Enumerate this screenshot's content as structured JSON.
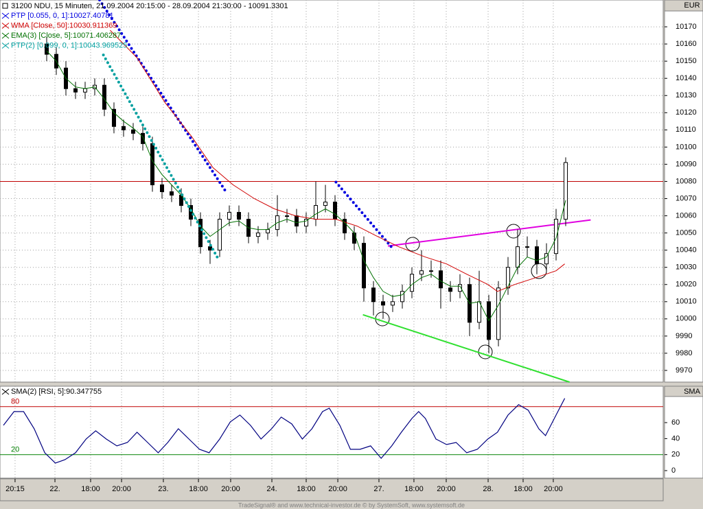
{
  "chart_data": {
    "type": "candlestick",
    "title": "31200  NDU, 15 Minuten, 21.09.2004 20:15:00 - 28.09.2004 21:30:00 - 10091.3301",
    "y_unit": "EUR",
    "xlim": [
      -4.857,
      64.143
    ],
    "xticks": [
      {
        "value": -3.29,
        "label": "20:15"
      },
      {
        "value": 0.86,
        "label": "22."
      },
      {
        "value": 4.57,
        "label": "18:00"
      },
      {
        "value": 7.79,
        "label": "20:00"
      },
      {
        "value": 12.14,
        "label": "23."
      },
      {
        "value": 15.79,
        "label": "18:00"
      },
      {
        "value": 19.14,
        "label": "20:00"
      },
      {
        "value": 23.43,
        "label": "24."
      },
      {
        "value": 27,
        "label": "18:00"
      },
      {
        "value": 30.29,
        "label": "20:00"
      },
      {
        "value": 34.57,
        "label": "27."
      },
      {
        "value": 38.21,
        "label": "18:00"
      },
      {
        "value": 41.57,
        "label": "20:00"
      },
      {
        "value": 45.93,
        "label": "28."
      },
      {
        "value": 49.57,
        "label": "18:00"
      },
      {
        "value": 52.71,
        "label": "20:00"
      }
    ],
    "ylim": [
      9963.2,
      10185.6
    ],
    "yticks": [
      9970,
      9980,
      9990,
      10000,
      10010,
      10020,
      10030,
      10040,
      10050,
      10060,
      10070,
      10080,
      10090,
      10100,
      10110,
      10120,
      10130,
      10140,
      10150,
      10160,
      10170
    ],
    "grid": true,
    "up_color": "#ffffff",
    "down_color": "#000000",
    "open": [
      10160,
      10154,
      10146,
      10134,
      10132,
      10134,
      10136,
      10122,
      10112,
      10110,
      10108,
      10102,
      10078,
      10074,
      10072,
      10066,
      10058,
      10042,
      10040,
      10058,
      10062,
      10058,
      10048,
      10050,
      10052,
      10060,
      10060,
      10054,
      10058,
      10066,
      10068,
      10058,
      10050,
      10044,
      10018,
      10010,
      10008,
      10010,
      10016,
      10026,
      10028,
      10028,
      10018,
      10016,
      10020,
      9998,
      10010,
      9988,
      10018,
      10030,
      10042,
      10042,
      10032,
      10038,
      10058
    ],
    "high": [
      10164,
      10158,
      10150,
      10138,
      10138,
      10140,
      10140,
      10126,
      10116,
      10114,
      10112,
      10106,
      10082,
      10078,
      10076,
      10070,
      10062,
      10046,
      10062,
      10066,
      10066,
      10062,
      10054,
      10056,
      10072,
      10064,
      10064,
      10062,
      10080,
      10078,
      10072,
      10062,
      10054,
      10048,
      10022,
      10014,
      10014,
      10020,
      10030,
      10040,
      10034,
      10034,
      10022,
      10026,
      10024,
      10028,
      10014,
      10022,
      10036,
      10052,
      10048,
      10046,
      10044,
      10064,
      10094
    ],
    "low": [
      10150,
      10142,
      10130,
      10128,
      10128,
      10130,
      10118,
      10108,
      10106,
      10104,
      10098,
      10074,
      10070,
      10068,
      10062,
      10054,
      10038,
      10032,
      10036,
      10054,
      10054,
      10044,
      10044,
      10046,
      10048,
      10056,
      10050,
      10050,
      10054,
      10062,
      10054,
      10046,
      10040,
      10010,
      10002,
      10000,
      10004,
      10006,
      10012,
      10022,
      10024,
      10006,
      10010,
      10012,
      9990,
      9994,
      9980,
      9984,
      10014,
      10026,
      10036,
      10026,
      10028,
      10034,
      10054
    ],
    "close": [
      10154,
      10146,
      10134,
      10132,
      10134,
      10136,
      10122,
      10112,
      10110,
      10108,
      10102,
      10078,
      10074,
      10072,
      10066,
      10058,
      10042,
      10040,
      10058,
      10062,
      10058,
      10048,
      10050,
      10052,
      10060,
      10060,
      10054,
      10058,
      10066,
      10068,
      10058,
      10050,
      10044,
      10018,
      10010,
      10008,
      10010,
      10016,
      10026,
      10028,
      10028,
      10018,
      10016,
      10020,
      9998,
      10010,
      9988,
      10018,
      10030,
      10042,
      10042,
      10032,
      10038,
      10058,
      10091
    ],
    "series": [
      {
        "name": "PTP [0.055, 0, 1]:10027.40781",
        "color": "#0000e0",
        "style": "dots",
        "x": [
          5.5,
          18.7,
          21.9,
          30.1,
          35.9,
          40.9,
          45.1,
          47.1,
          53.9
        ],
        "values": [
          10185.6,
          10073.6,
          null,
          10079.6,
          10041.6,
          null,
          10021.6,
          null,
          10029.6
        ]
      },
      {
        "name": "WMA [Close, 50]:10030.911369",
        "color": "#d00000",
        "style": "line",
        "x": [
          6.6,
          9.4,
          12.3,
          15.1,
          17.3,
          19.4,
          21.6,
          23.7,
          25.9,
          28,
          30.1,
          32.3,
          34.4,
          36.6,
          39.4,
          41.6,
          43.7,
          45.9,
          46.9,
          48.7,
          50.9,
          53,
          53.9
        ],
        "values": [
          10168,
          10152,
          10126,
          10106,
          10088,
          10078,
          10070,
          10064,
          10060,
          10058,
          10058,
          10054,
          10048,
          10042,
          10036,
          10032,
          10026,
          10020,
          10016,
          10020,
          10024,
          10028,
          10032
        ]
      },
      {
        "name": "EMA(3) [Close, 5]:10071.406287",
        "color": "#007000",
        "style": "line",
        "x": [
          0,
          1,
          2,
          3,
          4,
          5,
          6,
          7,
          8,
          9,
          10,
          11,
          12,
          13,
          14,
          15,
          16,
          17,
          18,
          19,
          20,
          21,
          22,
          23,
          24,
          25,
          26,
          27,
          28,
          29,
          30,
          31,
          32,
          33,
          34,
          35,
          36,
          37,
          38,
          39,
          40,
          41,
          42,
          43,
          44,
          45,
          46,
          47,
          48,
          49,
          50,
          51,
          52,
          53,
          54
        ],
        "values": [
          10156,
          10150,
          10140,
          10135,
          10134,
          10135,
          10128,
          10120,
          10115,
          10111,
          10106,
          10092,
          10084,
          10078,
          10072,
          10064,
          10054,
          10048,
          10052,
          10056,
          10057,
          10053,
          10052,
          10052,
          10056,
          10058,
          10056,
          10057,
          10061,
          10064,
          10061,
          10056,
          10050,
          10034,
          10024,
          10016,
          10013,
          10014,
          10020,
          10024,
          10026,
          10022,
          10019,
          10019,
          10009,
          10010,
          9999,
          10008,
          10019,
          10030,
          10036,
          10034,
          10036,
          10047,
          10069
        ]
      },
      {
        "name": "PTP(2) [0.099, 0, 1]:10043.969525",
        "color": "#00a0a0",
        "style": "dots",
        "x": [
          5.9,
          17.9,
          19.1,
          26.9,
          28,
          33,
          35.1,
          40.9,
          41.6,
          44.4,
          47.6,
          53.9
        ],
        "values": [
          10153.6,
          10034.4,
          null,
          10069.6,
          null,
          10051.6,
          null,
          10031.6,
          null,
          10009.6,
          null,
          10045.6
        ]
      }
    ],
    "hline": {
      "value": 10080,
      "color": "#c00000"
    },
    "trendlines": [
      {
        "color": "#e000e0",
        "x": [
          35.5,
          56.6
        ],
        "values": [
          10042.4,
          10057.6
        ]
      },
      {
        "color": "#30e030",
        "x": [
          32.9,
          54.4
        ],
        "values": [
          10002.4,
          9963.2
        ]
      }
    ],
    "indicator": {
      "type": "line",
      "title": "SMA(2) [RSI, 5]:90.347755",
      "y_unit": "SMA",
      "ylim": [
        -9.4,
        105.5
      ],
      "yticks": [
        0,
        20,
        40,
        60
      ],
      "levels": [
        {
          "value": 80,
          "color": "#c00000"
        },
        {
          "value": 20,
          "color": "#008000"
        }
      ],
      "color": "#000080",
      "x": [
        -4.5,
        -3.4,
        -2.4,
        -1.3,
        -0.2,
        0.9,
        1.9,
        3,
        4.1,
        5.1,
        6.2,
        7.3,
        8.4,
        9.4,
        10.5,
        11.6,
        12.6,
        13.7,
        14.8,
        15.9,
        16.9,
        18,
        19.1,
        20.1,
        21.2,
        22.3,
        23.4,
        24.4,
        25.5,
        26.6,
        27.6,
        28.7,
        29.4,
        30.5,
        31.6,
        32.6,
        33.7,
        34.8,
        35.9,
        36.9,
        38,
        38.7,
        39.4,
        40.5,
        41.6,
        42.6,
        43.7,
        44.8,
        45.9,
        46.9,
        48,
        49.1,
        50.1,
        51.2,
        51.9,
        53,
        53.9
      ],
      "values": [
        56.6,
        73.8,
        73.8,
        52.3,
        22.3,
        9.4,
        13.7,
        22.3,
        39.5,
        49.8,
        39.5,
        30.9,
        35.2,
        48,
        35.2,
        22.3,
        35.2,
        52.3,
        39.5,
        26.6,
        22.3,
        39.5,
        60.9,
        69.5,
        56.6,
        39.5,
        52.3,
        66.9,
        58.3,
        39.5,
        52.3,
        73.8,
        78.1,
        56.6,
        26.6,
        26.6,
        30.9,
        15.4,
        30.9,
        48,
        65.2,
        73.8,
        65.2,
        39.5,
        32.6,
        35.2,
        22.3,
        26.6,
        39.5,
        48,
        69.5,
        82.4,
        75.5,
        52.3,
        43.8,
        69.5,
        90.3
      ]
    }
  },
  "footer": "TradeSignal® and www.technical-investor.de © by SystemSoft, www.systemsoft.de"
}
